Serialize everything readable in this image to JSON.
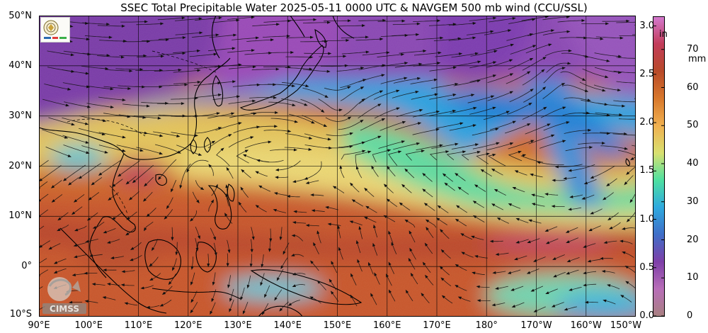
{
  "title": "SSEC Total Precipitable Water  2025-05-11 0000 UTC & NAVGEM 500 mb wind (CCU/SSL)",
  "latitude_labels": [
    "50°N",
    "40°N",
    "30°N",
    "20°N",
    "10°N",
    "0°",
    "10°S"
  ],
  "longitude_labels": [
    "90°E",
    "100°E",
    "110°E",
    "120°E",
    "130°E",
    "140°E",
    "150°E",
    "160°E",
    "170°E",
    "180°",
    "170°W",
    "160°W",
    "150°W"
  ],
  "legend": {
    "inch_unit": "in",
    "mm_unit": "mm",
    "inch_ticks": [
      "3.0",
      "2.5",
      "2.0",
      "1.5",
      "1.0",
      "0.5",
      "0.0"
    ],
    "mm_ticks": [
      "70",
      "60",
      "50",
      "40",
      "30",
      "20",
      "10",
      "0"
    ],
    "colors": [
      "#a88080",
      "#b86eb8",
      "#7e3fa8",
      "#3f6ec8",
      "#2faadf",
      "#4fe0a0",
      "#d9e070",
      "#f0b050",
      "#d8782c",
      "#b84a2a",
      "#c23c5a",
      "#d47ad0"
    ]
  },
  "logos": {
    "cimss": "CIMSS"
  },
  "map": {
    "extent": {
      "lon_min": 90,
      "lon_max": 210,
      "lat_min": -10,
      "lat_max": 50
    },
    "grid_step_degrees": 10
  }
}
